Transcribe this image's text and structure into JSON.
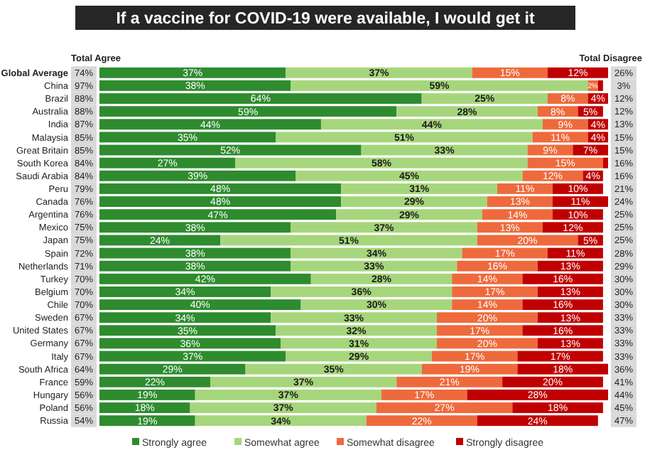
{
  "chart_data": {
    "type": "bar",
    "title": "If a vaccine for COVID-19 were available, I would get it",
    "orientation": "horizontal",
    "stacked": true,
    "legend": "bottom",
    "grid": false,
    "tick_labels": "y",
    "categories": [
      "Global Average",
      "China",
      "Brazil",
      "Australia",
      "India",
      "Malaysia",
      "Great Britain",
      "South Korea",
      "Saudi Arabia",
      "Peru",
      "Canada",
      "Argentina",
      "Mexico",
      "Japan",
      "Spain",
      "Netherlands",
      "Turkey",
      "Belgium",
      "Chile",
      "Sweden",
      "United States",
      "Germany",
      "Italy",
      "South Africa",
      "France",
      "Hungary",
      "Poland",
      "Russia"
    ],
    "series": [
      {
        "name": "Strongly agree",
        "color": "#2e8b2e",
        "values": [
          37,
          38,
          64,
          59,
          44,
          35,
          52,
          27,
          39,
          48,
          48,
          47,
          38,
          24,
          38,
          38,
          42,
          34,
          40,
          34,
          35,
          36,
          37,
          29,
          22,
          19,
          18,
          19
        ],
        "value_labels": [
          "37%",
          "38%",
          "64%",
          "59%",
          "44%",
          "35%",
          "52%",
          "27%",
          "39%",
          "48%",
          "48%",
          "47%",
          "38%",
          "24%",
          "38%",
          "38%",
          "42%",
          "34%",
          "40%",
          "34%",
          "35%",
          "36%",
          "37%",
          "29%",
          "22%",
          "19%",
          "18%",
          "19%"
        ]
      },
      {
        "name": "Somewhat agree",
        "color": "#a6d67c",
        "values": [
          37,
          59,
          25,
          28,
          44,
          51,
          33,
          58,
          45,
          31,
          29,
          29,
          37,
          51,
          34,
          33,
          28,
          36,
          30,
          33,
          32,
          31,
          29,
          35,
          37,
          37,
          37,
          34
        ],
        "value_labels": [
          "37%",
          "59%",
          "25%",
          "28%",
          "44%",
          "51%",
          "33%",
          "58%",
          "45%",
          "31%",
          "29%",
          "29%",
          "37%",
          "51%",
          "34%",
          "33%",
          "28%",
          "36%",
          "30%",
          "33%",
          "32%",
          "31%",
          "29%",
          "35%",
          "37%",
          "37%",
          "37%",
          "34%"
        ]
      },
      {
        "name": "Somewhat disagree",
        "color": "#ee6a3c",
        "values": [
          15,
          2,
          8,
          8,
          9,
          11,
          9,
          15,
          12,
          11,
          13,
          14,
          13,
          20,
          17,
          16,
          14,
          17,
          14,
          20,
          17,
          20,
          17,
          19,
          21,
          17,
          27,
          22
        ],
        "value_labels": [
          "15%",
          "2%",
          "8%",
          "8%",
          "9%",
          "11%",
          "9%",
          "15%",
          "12%",
          "11%",
          "13%",
          "14%",
          "13%",
          "20%",
          "17%",
          "16%",
          "14%",
          "17%",
          "14%",
          "20%",
          "17%",
          "20%",
          "17%",
          "19%",
          "21%",
          "17%",
          "27%",
          "22%"
        ]
      },
      {
        "name": "Strongly disagree",
        "color": "#c00000",
        "values": [
          12,
          1,
          4,
          5,
          4,
          4,
          7,
          1,
          4,
          10,
          11,
          10,
          12,
          5,
          11,
          13,
          16,
          13,
          16,
          13,
          16,
          13,
          17,
          18,
          20,
          28,
          18,
          24
        ],
        "value_labels": [
          "12%",
          null,
          "4%",
          "5%",
          "4%",
          "4%",
          "7%",
          null,
          "4%",
          "10%",
          "11%",
          "10%",
          "12%",
          "5%",
          "11%",
          "13%",
          "16%",
          "13%",
          "16%",
          "13%",
          "16%",
          "13%",
          "17%",
          "18%",
          "20%",
          "28%",
          "18%",
          "24%"
        ]
      }
    ],
    "annotations": [
      "Total Agree",
      "Total Disagree",
      {
        "text": "74%",
        "y": "Global Average"
      },
      {
        "text": "97%",
        "y": "China"
      },
      {
        "text": "88%",
        "y": "Brazil"
      },
      {
        "text": "88%",
        "y": "Australia"
      },
      {
        "text": "87%",
        "y": "India"
      },
      {
        "text": "85%",
        "y": "Malaysia"
      },
      {
        "text": "85%",
        "y": "Great Britain"
      },
      {
        "text": "84%",
        "y": "South Korea"
      },
      {
        "text": "84%",
        "y": "Saudi Arabia"
      },
      {
        "text": "79%",
        "y": "Peru"
      },
      {
        "text": "76%",
        "y": "Canada"
      },
      {
        "text": "76%",
        "y": "Argentina"
      },
      {
        "text": "75%",
        "y": "Mexico"
      },
      {
        "text": "75%",
        "y": "Japan"
      },
      {
        "text": "72%",
        "y": "Spain"
      },
      {
        "text": "71%",
        "y": "Netherlands"
      },
      {
        "text": "70%",
        "y": "Turkey"
      },
      {
        "text": "70%",
        "y": "Belgium"
      },
      {
        "text": "70%",
        "y": "Chile"
      },
      {
        "text": "67%",
        "y": "Sweden"
      },
      {
        "text": "67%",
        "y": "United States"
      },
      {
        "text": "67%",
        "y": "Germany"
      },
      {
        "text": "67%",
        "y": "Italy"
      },
      {
        "text": "64%",
        "y": "South Africa"
      },
      {
        "text": "59%",
        "y": "France"
      },
      {
        "text": "56%",
        "y": "Hungary"
      },
      {
        "text": "56%",
        "y": "Poland"
      },
      {
        "text": "54%",
        "y": "Russia"
      },
      {
        "text": "26%",
        "y": "Global Average"
      },
      {
        "text": "3%",
        "y": "China"
      },
      {
        "text": "12%",
        "y": "Brazil"
      },
      {
        "text": "12%",
        "y": "Australia"
      },
      {
        "text": "13%",
        "y": "India"
      },
      {
        "text": "15%",
        "y": "Malaysia"
      },
      {
        "text": "15%",
        "y": "Great Britain"
      },
      {
        "text": "16%",
        "y": "South Korea"
      },
      {
        "text": "16%",
        "y": "Saudi Arabia"
      },
      {
        "text": "21%",
        "y": "Peru"
      },
      {
        "text": "24%",
        "y": "Canada"
      },
      {
        "text": "25%",
        "y": "Argentina"
      },
      {
        "text": "25%",
        "y": "Mexico"
      },
      {
        "text": "25%",
        "y": "Japan"
      },
      {
        "text": "28%",
        "y": "Spain"
      },
      {
        "text": "29%",
        "y": "Netherlands"
      },
      {
        "text": "30%",
        "y": "Turkey"
      },
      {
        "text": "30%",
        "y": "Belgium"
      },
      {
        "text": "30%",
        "y": "Chile"
      },
      {
        "text": "33%",
        "y": "Sweden"
      },
      {
        "text": "33%",
        "y": "United States"
      },
      {
        "text": "33%",
        "y": "Germany"
      },
      {
        "text": "33%",
        "y": "Italy"
      },
      {
        "text": "36%",
        "y": "South Africa"
      },
      {
        "text": "41%",
        "y": "France"
      },
      {
        "text": "44%",
        "y": "Hungary"
      },
      {
        "text": "45%",
        "y": "Poland"
      },
      {
        "text": "47%",
        "y": "Russia"
      }
    ]
  }
}
